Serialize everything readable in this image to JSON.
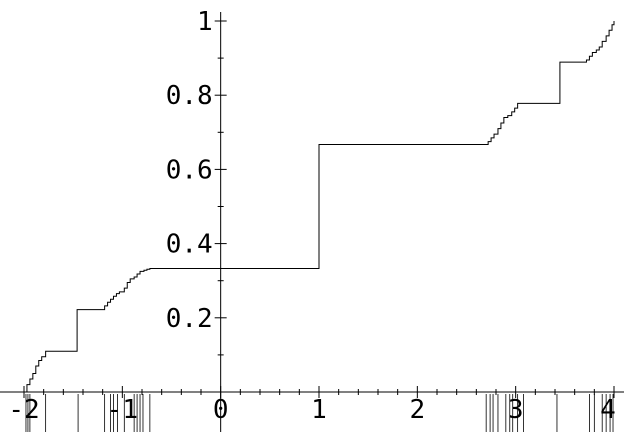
{
  "chart_data": {
    "type": "line",
    "title": "",
    "xlabel": "",
    "ylabel": "",
    "xlim": [
      -2,
      4
    ],
    "ylim": [
      0,
      1
    ],
    "grid": false,
    "x_ticks": [
      "-2",
      "-1",
      "0",
      "1",
      "2",
      "3",
      "4"
    ],
    "y_ticks": [
      "0.2",
      "0.4",
      "0.6",
      "0.8",
      "1"
    ],
    "rug_x": [
      -1.98,
      -1.96,
      -1.94,
      -1.78,
      -1.45,
      -1.18,
      -1.12,
      -1.09,
      -1.05,
      -0.98,
      -0.88,
      -0.85,
      -0.82,
      -0.79,
      -0.72,
      2.7,
      2.74,
      2.77,
      2.82,
      2.9,
      2.94,
      2.97,
      3.02,
      3.08,
      3.42,
      3.75,
      3.8,
      3.88,
      3.92,
      3.96,
      3.99
    ],
    "series": [
      {
        "step": true,
        "x": [
          -2.0,
          -1.97,
          -1.94,
          -1.91,
          -1.88,
          -1.85,
          -1.82,
          -1.78,
          -1.46,
          -1.18,
          -1.15,
          -1.12,
          -1.09,
          -1.06,
          -1.03,
          -0.98,
          -0.95,
          -0.92,
          -0.88,
          -0.85,
          -0.82,
          -0.78,
          -0.75,
          -0.72,
          1.0,
          2.72,
          2.75,
          2.78,
          2.82,
          2.85,
          2.88,
          2.92,
          2.96,
          2.99,
          3.02,
          3.45,
          3.72,
          3.75,
          3.78,
          3.82,
          3.85,
          3.88,
          3.92,
          3.95,
          3.98,
          4.0
        ],
        "y": [
          0.0,
          0.02,
          0.035,
          0.05,
          0.07,
          0.085,
          0.095,
          0.11,
          0.222,
          0.232,
          0.242,
          0.25,
          0.258,
          0.265,
          0.27,
          0.28,
          0.295,
          0.305,
          0.31,
          0.318,
          0.325,
          0.328,
          0.331,
          0.333,
          0.667,
          0.675,
          0.685,
          0.695,
          0.71,
          0.725,
          0.74,
          0.745,
          0.755,
          0.765,
          0.778,
          0.889,
          0.895,
          0.905,
          0.915,
          0.922,
          0.93,
          0.945,
          0.96,
          0.975,
          0.99,
          1.0
        ]
      }
    ]
  }
}
